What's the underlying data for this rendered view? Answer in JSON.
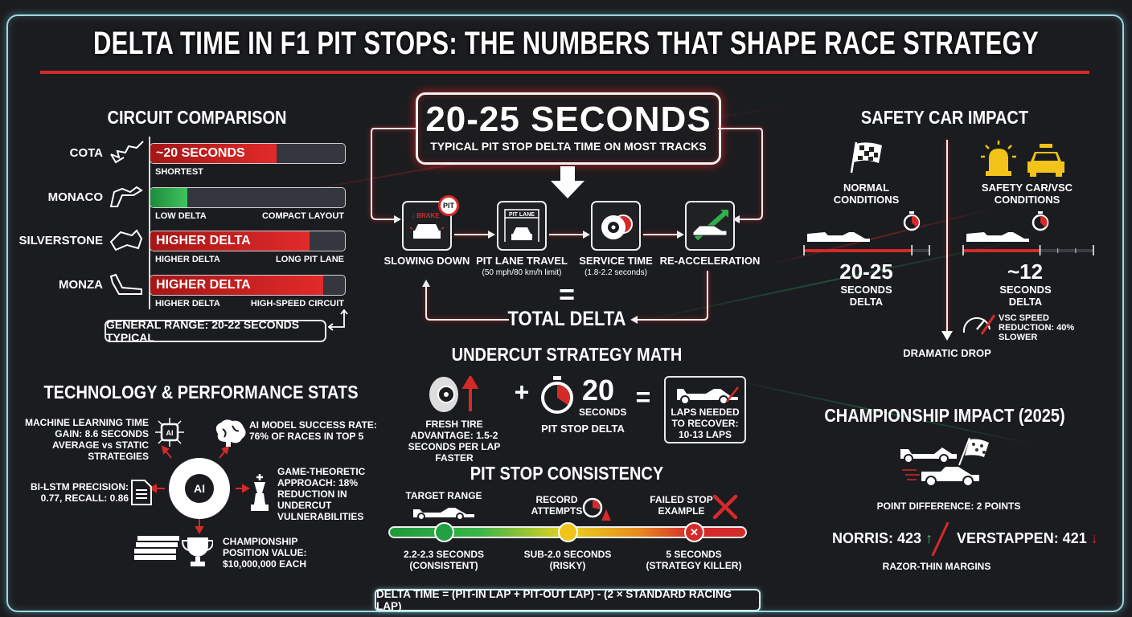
{
  "title": "DELTA TIME IN F1 PIT STOPS: THE NUMBERS THAT SHAPE RACE STRATEGY",
  "colors": {
    "accent_red": "#d42a2a",
    "green": "#3fc45e",
    "yellow": "#f2c318",
    "frame": "#9fd6df",
    "background": "#1b1c1f"
  },
  "circuit": {
    "heading": "CIRCUIT COMPARISON",
    "rows": [
      {
        "name": "COTA",
        "bar_text": "~20 SECONDS",
        "fill": 0.65,
        "color": "red",
        "left_note": "SHORTEST",
        "right_note": ""
      },
      {
        "name": "MONACO",
        "bar_text": "",
        "fill": 0.19,
        "color": "green",
        "left_note": "LOW DELTA",
        "right_note": "COMPACT LAYOUT"
      },
      {
        "name": "SILVERSTONE",
        "bar_text": "HIGHER DELTA",
        "fill": 0.82,
        "color": "red",
        "left_note": "HIGHER DELTA",
        "right_note": "LONG PIT LANE"
      },
      {
        "name": "MONZA",
        "bar_text": "HIGHER DELTA",
        "fill": 0.89,
        "color": "red",
        "left_note": "HIGHER DELTA",
        "right_note": "HIGH-SPEED CIRCUIT"
      }
    ],
    "general_range": "GENERAL RANGE: 20-22 SECONDS TYPICAL"
  },
  "hero": {
    "big": "20-25 SECONDS",
    "sub": "TYPICAL PIT STOP DELTA TIME ON MOST TRACKS",
    "steps": [
      {
        "label": "SLOWING DOWN",
        "sub": "",
        "icon": "braking-car-icon",
        "icon_text": "BRAKE"
      },
      {
        "label": "PIT LANE TRAVEL",
        "sub": "(50 mph/80 km/h limit)",
        "icon": "pit-lane-icon",
        "icon_text": "PIT LANE"
      },
      {
        "label": "SERVICE TIME",
        "sub": "(1.8-2.2 seconds)",
        "icon": "tire-stopwatch-icon"
      },
      {
        "label": "RE-ACCELERATION",
        "sub": "",
        "icon": "accelerating-car-icon"
      }
    ],
    "pit_badge": "PIT",
    "equals": "=",
    "total": "TOTAL DELTA"
  },
  "safety": {
    "heading": "SAFETY CAR IMPACT",
    "normal": {
      "label": "NORMAL CONDITIONS",
      "value": "20-25",
      "unit": "SECONDS DELTA",
      "progress": 0.86
    },
    "sc": {
      "label": "SAFETY CAR/VSC CONDITIONS",
      "value": "~12",
      "unit": "SECONDS DELTA",
      "progress": 0.59
    },
    "vsc_note": "VSC SPEED REDUCTION: 40% SLOWER",
    "drop": "DRAMATIC DROP"
  },
  "undercut": {
    "heading": "UNDERCUT STRATEGY MATH",
    "tire": "FRESH TIRE ADVANTAGE: 1.5-2 SECONDS PER LAP FASTER",
    "plus": "+",
    "value": "20",
    "value_unit": "SECONDS",
    "delta_label": "PIT STOP DELTA",
    "equals": "=",
    "result": "LAPS NEEDED TO RECOVER: 10-13 LAPS"
  },
  "consistency": {
    "heading": "PIT STOP CONSISTENCY",
    "markers": [
      {
        "top": "TARGET RANGE",
        "bottom1": "2.2-2.3 SECONDS",
        "bottom2": "(CONSISTENT)",
        "color": "#23a043"
      },
      {
        "top": "RECORD ATTEMPTS",
        "bottom1": "SUB-2.0 SECONDS",
        "bottom2": "(RISKY)",
        "color": "#f2c318"
      },
      {
        "top": "FAILED STOP EXAMPLE",
        "bottom1": "5 SECONDS",
        "bottom2": "(STRATEGY KILLER)",
        "color": "#d42a2a"
      }
    ]
  },
  "formula": "DELTA TIME = (PIT-IN LAP + PIT-OUT LAP) - (2 × STANDARD RACING LAP)",
  "tech": {
    "heading": "TECHNOLOGY & PERFORMANCE STATS",
    "center": "AI",
    "ml": "MACHINE LEARNING TIME GAIN: 8.6 SECONDS AVERAGE vs STATIC STRATEGIES",
    "ai_rate": "AI MODEL SUCCESS RATE: 76% OF RACES IN TOP 5",
    "bilstm": "BI-LSTM PRECISION: 0.77, RECALL: 0.86",
    "game": "GAME-THEORETIC APPROACH: 18% REDUCTION IN UNDERCUT VULNERABILITIES",
    "champ": "CHAMPIONSHIP POSITION VALUE: $10,000,000 EACH"
  },
  "championship": {
    "heading": "CHAMPIONSHIP IMPACT (2025)",
    "diff": "POINT DIFFERENCE: 2 POINTS",
    "norris": "NORRIS: 423",
    "verstappen": "VERSTAPPEN: 421",
    "note": "RAZOR-THIN MARGINS"
  }
}
